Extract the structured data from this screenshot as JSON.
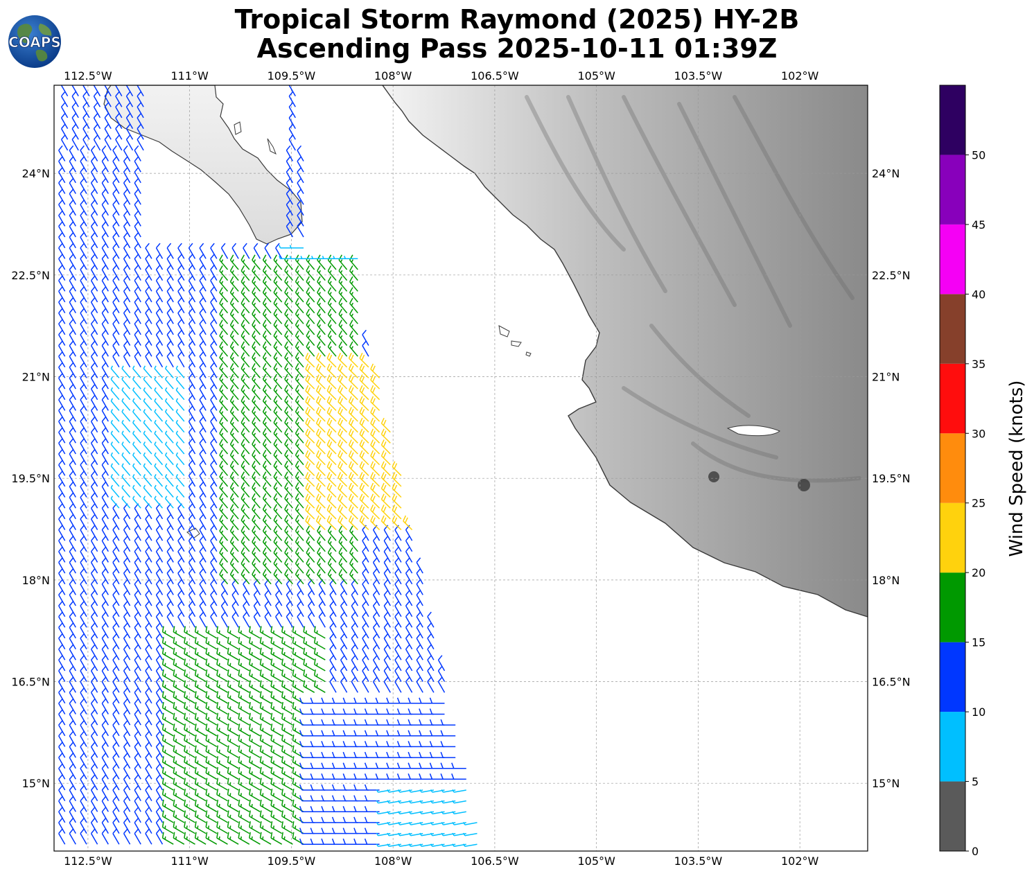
{
  "header": {
    "logo_text": "COAPS",
    "title_line1": "Tropical Storm Raymond (2025) HY-2B",
    "title_line2": "Ascending Pass 2025-10-11 01:39Z"
  },
  "map": {
    "lon_range": [
      -113.0,
      -101.0
    ],
    "lat_range": [
      14.0,
      25.3
    ],
    "lon_tick_values": [
      -112.5,
      -111.0,
      -109.5,
      -108.0,
      -106.5,
      -105.0,
      -103.5,
      -102.0
    ],
    "lat_tick_values": [
      15.0,
      16.5,
      18.0,
      19.5,
      21.0,
      22.5,
      24.0
    ],
    "lon_tick_labels": [
      "112.5°W",
      "111°W",
      "109.5°W",
      "108°W",
      "106.5°W",
      "105°W",
      "103.5°W",
      "102°W"
    ],
    "lat_tick_labels": [
      "15°N",
      "16.5°N",
      "18°N",
      "19.5°N",
      "21°N",
      "22.5°N",
      "24°N"
    ],
    "gridlines": true,
    "basemap": "grayscale topography over land, white ocean",
    "coastline_color": "#3a3a3a"
  },
  "colorbar": {
    "label": "Wind Speed (knots)",
    "tick_labels": [
      "0",
      "5",
      "10",
      "15",
      "20",
      "25",
      "30",
      "35",
      "40",
      "45",
      "50"
    ],
    "bins": [
      {
        "min": 0,
        "max": 5,
        "color": "#5a5a5a"
      },
      {
        "min": 5,
        "max": 10,
        "color": "#00bfff"
      },
      {
        "min": 10,
        "max": 15,
        "color": "#0037ff"
      },
      {
        "min": 15,
        "max": 20,
        "color": "#009900"
      },
      {
        "min": 20,
        "max": 25,
        "color": "#ffd20d"
      },
      {
        "min": 25,
        "max": 30,
        "color": "#ff8c0d"
      },
      {
        "min": 30,
        "max": 35,
        "color": "#ff0d0d"
      },
      {
        "min": 35,
        "max": 40,
        "color": "#86402b"
      },
      {
        "min": 40,
        "max": 45,
        "color": "#f500f5"
      },
      {
        "min": 45,
        "max": 50,
        "color": "#8800bb"
      },
      {
        "min": 50,
        "max": 55,
        "color": "#2e0061"
      }
    ]
  },
  "wind_swath": {
    "units": "knots",
    "barb_convention": "full barb = 10 kt, half barb = 5 kt",
    "zones": [
      {
        "region": "NW corner off Baja California",
        "speed_kt": 12,
        "from_dir_deg": 330
      },
      {
        "region": "cyan patch near 20N 112W",
        "speed_kt": 8,
        "from_dir_deg": 320
      },
      {
        "region": "cyan band near 22.7N 109W",
        "speed_kt": 8,
        "from_dir_deg": 270
      },
      {
        "region": "green core 18-21N 110-109W",
        "speed_kt": 17,
        "from_dir_deg": 320
      },
      {
        "region": "yellow core 19-21N 109-108W",
        "speed_kt": 22,
        "from_dir_deg": 315
      },
      {
        "region": "green band 15-17N 111-109W",
        "speed_kt": 17,
        "from_dir_deg": 300
      },
      {
        "region": "blue southern edge 15-16N 109-107.5W",
        "speed_kt": 12,
        "from_dir_deg": 270
      },
      {
        "region": "cyan southeast tip 14.5N 107.5W",
        "speed_kt": 8,
        "from_dir_deg": 260
      }
    ]
  }
}
